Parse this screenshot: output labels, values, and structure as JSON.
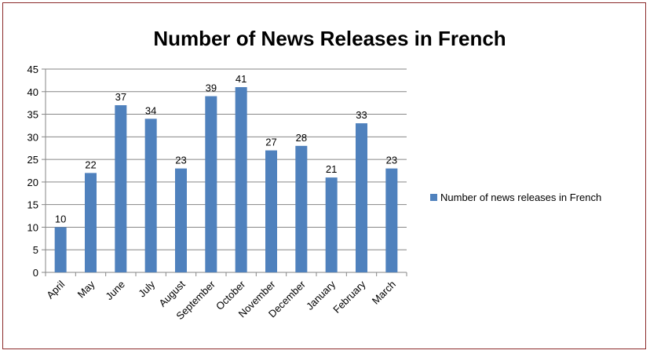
{
  "chart_data": {
    "type": "bar",
    "title": "Number of News Releases in French",
    "categories": [
      "April",
      "May",
      "June",
      "July",
      "August",
      "September",
      "October",
      "November",
      "December",
      "January",
      "February",
      "March"
    ],
    "series": [
      {
        "name": "Number of news releases in French",
        "values": [
          10,
          22,
          37,
          34,
          23,
          39,
          41,
          27,
          28,
          21,
          33,
          23
        ],
        "color": "#4f81bd"
      }
    ],
    "yticks": [
      "0",
      "5",
      "10",
      "15",
      "20",
      "25",
      "30",
      "35",
      "40",
      "45"
    ],
    "ylim": [
      0,
      45
    ],
    "xlabel": "",
    "ylabel": "",
    "grid": true,
    "legend": "right",
    "data_labels": true
  }
}
